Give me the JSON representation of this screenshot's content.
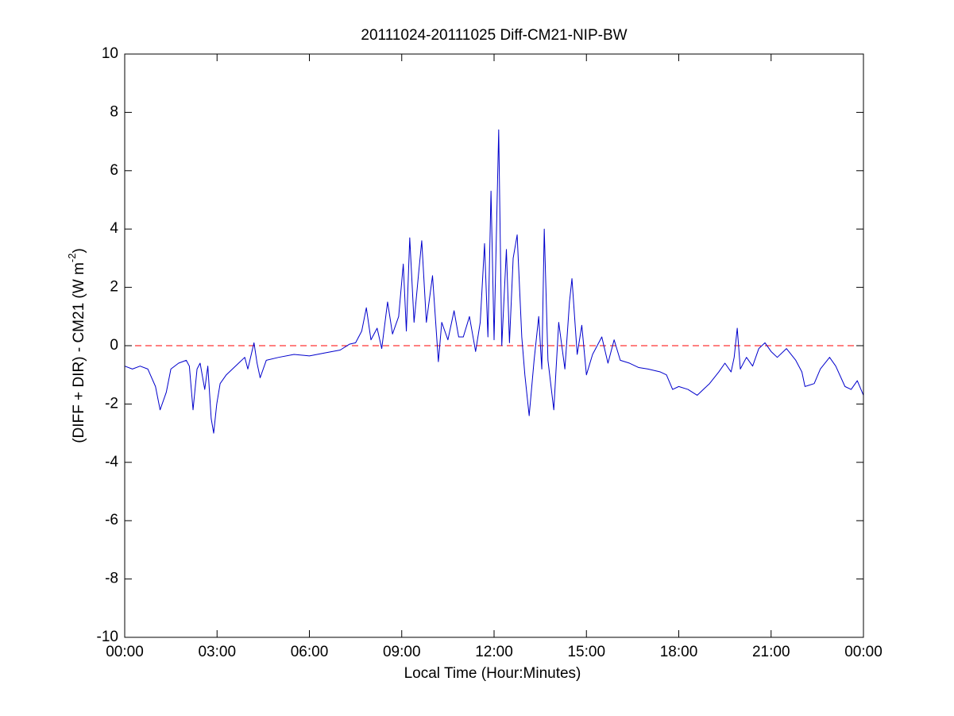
{
  "chart_data": {
    "type": "line",
    "title": "20111024-20111025 Diff-CM21-NIP-BW",
    "xlabel": "Local Time (Hour:Minutes)",
    "ylabel": {
      "text": "(DIFF + DIR) - CM21 (W m",
      "superscript": "-2",
      "suffix": ")"
    },
    "x": [
      0,
      0.25,
      0.5,
      0.75,
      1.0,
      1.15,
      1.35,
      1.5,
      1.75,
      2.0,
      2.1,
      2.22,
      2.35,
      2.45,
      2.6,
      2.7,
      2.81,
      2.89,
      2.99,
      3.1,
      3.3,
      3.5,
      3.7,
      3.9,
      4.0,
      4.2,
      4.3,
      4.4,
      4.6,
      5.0,
      5.5,
      6.0,
      6.5,
      7.0,
      7.3,
      7.5,
      7.7,
      7.85,
      8.0,
      8.2,
      8.35,
      8.54,
      8.7,
      8.9,
      9.05,
      9.15,
      9.26,
      9.4,
      9.55,
      9.65,
      9.8,
      10.0,
      10.19,
      10.3,
      10.5,
      10.7,
      10.85,
      11.0,
      11.2,
      11.4,
      11.55,
      11.69,
      11.8,
      11.9,
      12.0,
      12.15,
      12.25,
      12.4,
      12.5,
      12.62,
      12.75,
      12.9,
      13.0,
      13.14,
      13.3,
      13.45,
      13.55,
      13.63,
      13.75,
      13.94,
      14.1,
      14.3,
      14.45,
      14.53,
      14.7,
      14.85,
      15.0,
      15.2,
      15.5,
      15.7,
      15.9,
      16.1,
      16.4,
      16.7,
      17.0,
      17.4,
      17.6,
      17.8,
      18.0,
      18.3,
      18.6,
      18.8,
      19.0,
      19.3,
      19.5,
      19.7,
      19.8,
      19.9,
      20.0,
      20.2,
      20.4,
      20.6,
      20.8,
      21.0,
      21.2,
      21.5,
      21.8,
      22.0,
      22.1,
      22.4,
      22.6,
      22.9,
      23.1,
      23.4,
      23.6,
      23.8,
      24.0
    ],
    "series": [
      {
        "name": "Diff-CM21-NIP-BW",
        "color": "#0000cc",
        "values": [
          -0.7,
          -0.8,
          -0.7,
          -0.8,
          -1.4,
          -2.2,
          -1.6,
          -0.8,
          -0.6,
          -0.5,
          -0.7,
          -2.2,
          -0.8,
          -0.6,
          -1.5,
          -0.7,
          -2.5,
          -3.0,
          -2.0,
          -1.3,
          -1.0,
          -0.8,
          -0.6,
          -0.4,
          -0.8,
          0.1,
          -0.6,
          -1.1,
          -0.5,
          -0.4,
          -0.3,
          -0.35,
          -0.25,
          -0.15,
          0.05,
          0.1,
          0.5,
          1.3,
          0.2,
          0.6,
          -0.1,
          1.5,
          0.4,
          1.0,
          2.8,
          0.5,
          3.7,
          0.8,
          2.5,
          3.6,
          0.8,
          2.4,
          -0.55,
          0.8,
          0.2,
          1.2,
          0.3,
          0.3,
          1.0,
          -0.2,
          0.8,
          3.5,
          0.3,
          5.3,
          0.2,
          7.4,
          0.0,
          3.3,
          0.1,
          3.0,
          3.8,
          0.3,
          -1.0,
          -2.4,
          -0.5,
          1.0,
          -0.8,
          4.0,
          -0.5,
          -2.2,
          0.8,
          -0.8,
          1.5,
          2.3,
          -0.3,
          0.7,
          -1.0,
          -0.3,
          0.3,
          -0.6,
          0.2,
          -0.5,
          -0.6,
          -0.75,
          -0.8,
          -0.9,
          -1.0,
          -1.5,
          -1.4,
          -1.5,
          -1.7,
          -1.5,
          -1.3,
          -0.9,
          -0.6,
          -0.9,
          -0.4,
          0.6,
          -0.8,
          -0.4,
          -0.7,
          -0.1,
          0.1,
          -0.2,
          -0.4,
          -0.1,
          -0.5,
          -0.9,
          -1.4,
          -1.3,
          -0.8,
          -0.4,
          -0.7,
          -1.4,
          -1.5,
          -1.2,
          -1.7
        ]
      }
    ],
    "reference_line": {
      "value": 0,
      "color": "#ff0000"
    },
    "xlim": [
      0,
      24
    ],
    "xticks": [
      {
        "value": 0,
        "label": "00:00"
      },
      {
        "value": 3,
        "label": "03:00"
      },
      {
        "value": 6,
        "label": "06:00"
      },
      {
        "value": 9,
        "label": "09:00"
      },
      {
        "value": 12,
        "label": "12:00"
      },
      {
        "value": 15,
        "label": "15:00"
      },
      {
        "value": 18,
        "label": "18:00"
      },
      {
        "value": 21,
        "label": "21:00"
      },
      {
        "value": 24,
        "label": "00:00"
      }
    ],
    "ylim": [
      -10,
      10
    ],
    "yticks": [
      -10,
      -8,
      -6,
      -4,
      -2,
      0,
      2,
      4,
      6,
      8,
      10
    ],
    "grid": false
  }
}
